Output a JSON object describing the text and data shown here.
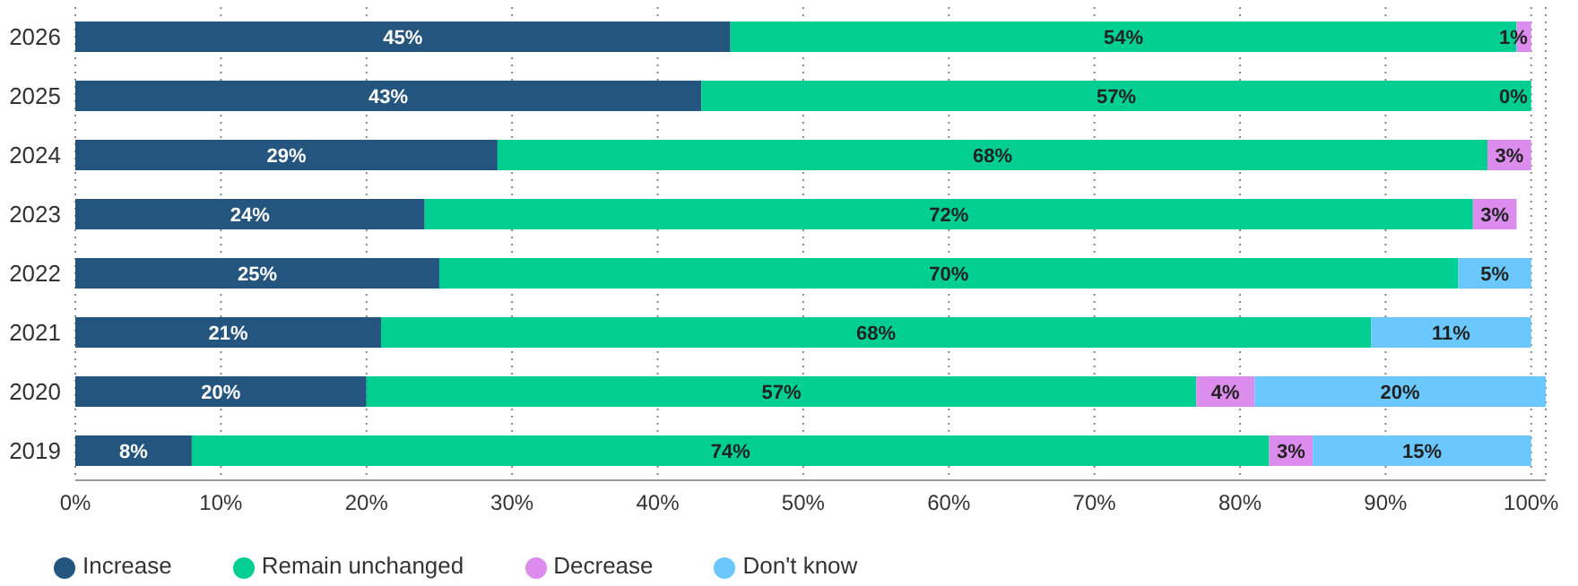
{
  "chart_data": {
    "type": "bar",
    "orientation": "horizontal",
    "stacked": true,
    "categories": [
      "2026",
      "2025",
      "2024",
      "2023",
      "2022",
      "2021",
      "2020",
      "2019"
    ],
    "series": [
      {
        "name": "Increase",
        "color": "#24557f",
        "values": [
          45,
          43,
          29,
          24,
          25,
          21,
          20,
          8
        ],
        "value_labels": [
          "45%",
          "43%",
          "29%",
          "24%",
          "25%",
          "21%",
          "20%",
          "8%"
        ]
      },
      {
        "name": "Remain unchanged",
        "color": "#00cf91",
        "values": [
          54,
          57,
          68,
          72,
          70,
          68,
          57,
          74
        ],
        "value_labels": [
          "54%",
          "57%",
          "68%",
          "72%",
          "70%",
          "68%",
          "57%",
          "74%"
        ]
      },
      {
        "name": "Decrease",
        "color": "#dc8ced",
        "values": [
          1,
          0,
          3,
          3,
          null,
          null,
          4,
          3
        ],
        "value_labels": [
          "1%",
          "0%",
          "3%",
          "3%",
          null,
          null,
          "4%",
          "3%"
        ]
      },
      {
        "name": "Don't know",
        "color": "#6ac8ff",
        "values": [
          null,
          null,
          null,
          null,
          5,
          11,
          20,
          15
        ],
        "value_labels": [
          null,
          null,
          null,
          null,
          "5%",
          "11%",
          "20%",
          "15%"
        ]
      }
    ],
    "xlim": [
      0,
      101
    ],
    "xticks": [
      {
        "value": 0,
        "label": "0%"
      },
      {
        "value": 10,
        "label": "10%"
      },
      {
        "value": 20,
        "label": "20%"
      },
      {
        "value": 30,
        "label": "30%"
      },
      {
        "value": 40,
        "label": "40%"
      },
      {
        "value": 50,
        "label": "50%"
      },
      {
        "value": 60,
        "label": "60%"
      },
      {
        "value": 70,
        "label": "70%"
      },
      {
        "value": 80,
        "label": "80%"
      },
      {
        "value": 90,
        "label": "90%"
      },
      {
        "value": 100,
        "label": "100%"
      }
    ],
    "grid": "x",
    "legend": "bottom left"
  }
}
